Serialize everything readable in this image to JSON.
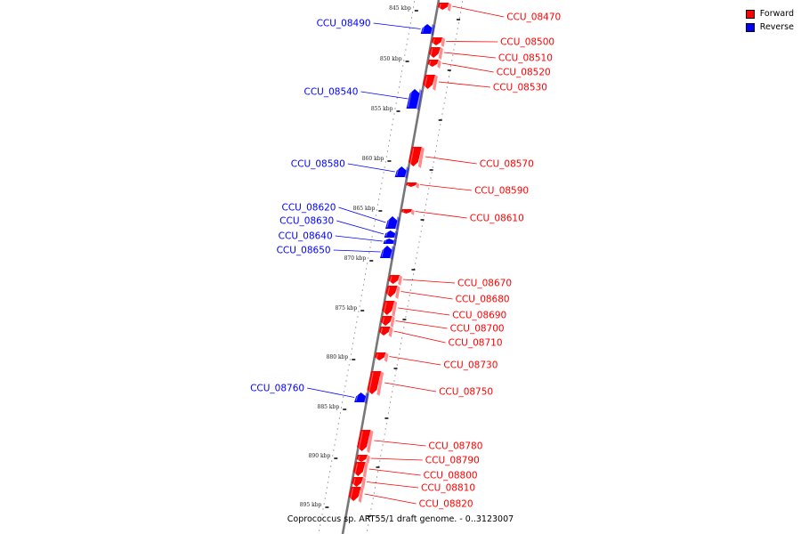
{
  "caption": "Coprococcus sp. ART55/1 draft genome. - 0..3123007",
  "legend": [
    {
      "label": "Forward",
      "color": "#ff0000"
    },
    {
      "label": "Reverse",
      "color": "#0000ff"
    }
  ],
  "colors": {
    "forward": "#ff0000",
    "reverse": "#0000ff",
    "backbone": "#777777"
  },
  "ticks": [
    {
      "kbp": 845,
      "label": "845 kbp"
    },
    {
      "kbp": 850,
      "label": "850 kbp"
    },
    {
      "kbp": 855,
      "label": "855 kbp"
    },
    {
      "kbp": 860,
      "label": "860 kbp"
    },
    {
      "kbp": 865,
      "label": "865 kbp"
    },
    {
      "kbp": 870,
      "label": "870 kbp"
    },
    {
      "kbp": 875,
      "label": "875 kbp"
    },
    {
      "kbp": 880,
      "label": "880 kbp"
    },
    {
      "kbp": 885,
      "label": "885 kbp"
    },
    {
      "kbp": 890,
      "label": "890 kbp"
    },
    {
      "kbp": 895,
      "label": "895 kbp"
    }
  ],
  "genes": [
    {
      "name": "CCU_08470",
      "strand": "forward"
    },
    {
      "name": "CCU_08490",
      "strand": "reverse"
    },
    {
      "name": "CCU_08500",
      "strand": "forward"
    },
    {
      "name": "CCU_08510",
      "strand": "forward"
    },
    {
      "name": "CCU_08520",
      "strand": "forward"
    },
    {
      "name": "CCU_08530",
      "strand": "forward"
    },
    {
      "name": "CCU_08540",
      "strand": "reverse"
    },
    {
      "name": "CCU_08570",
      "strand": "forward"
    },
    {
      "name": "CCU_08580",
      "strand": "reverse"
    },
    {
      "name": "CCU_08590",
      "strand": "forward"
    },
    {
      "name": "CCU_08610",
      "strand": "forward"
    },
    {
      "name": "CCU_08620",
      "strand": "reverse"
    },
    {
      "name": "CCU_08630",
      "strand": "reverse"
    },
    {
      "name": "CCU_08640",
      "strand": "reverse"
    },
    {
      "name": "CCU_08650",
      "strand": "reverse"
    },
    {
      "name": "CCU_08670",
      "strand": "forward"
    },
    {
      "name": "CCU_08680",
      "strand": "forward"
    },
    {
      "name": "CCU_08690",
      "strand": "forward"
    },
    {
      "name": "CCU_08700",
      "strand": "forward"
    },
    {
      "name": "CCU_08710",
      "strand": "forward"
    },
    {
      "name": "CCU_08730",
      "strand": "forward"
    },
    {
      "name": "CCU_08750",
      "strand": "forward"
    },
    {
      "name": "CCU_08760",
      "strand": "reverse"
    },
    {
      "name": "CCU_08780",
      "strand": "forward"
    },
    {
      "name": "CCU_08790",
      "strand": "forward"
    },
    {
      "name": "CCU_08800",
      "strand": "forward"
    },
    {
      "name": "CCU_08810",
      "strand": "forward"
    },
    {
      "name": "CCU_08820",
      "strand": "forward"
    }
  ]
}
